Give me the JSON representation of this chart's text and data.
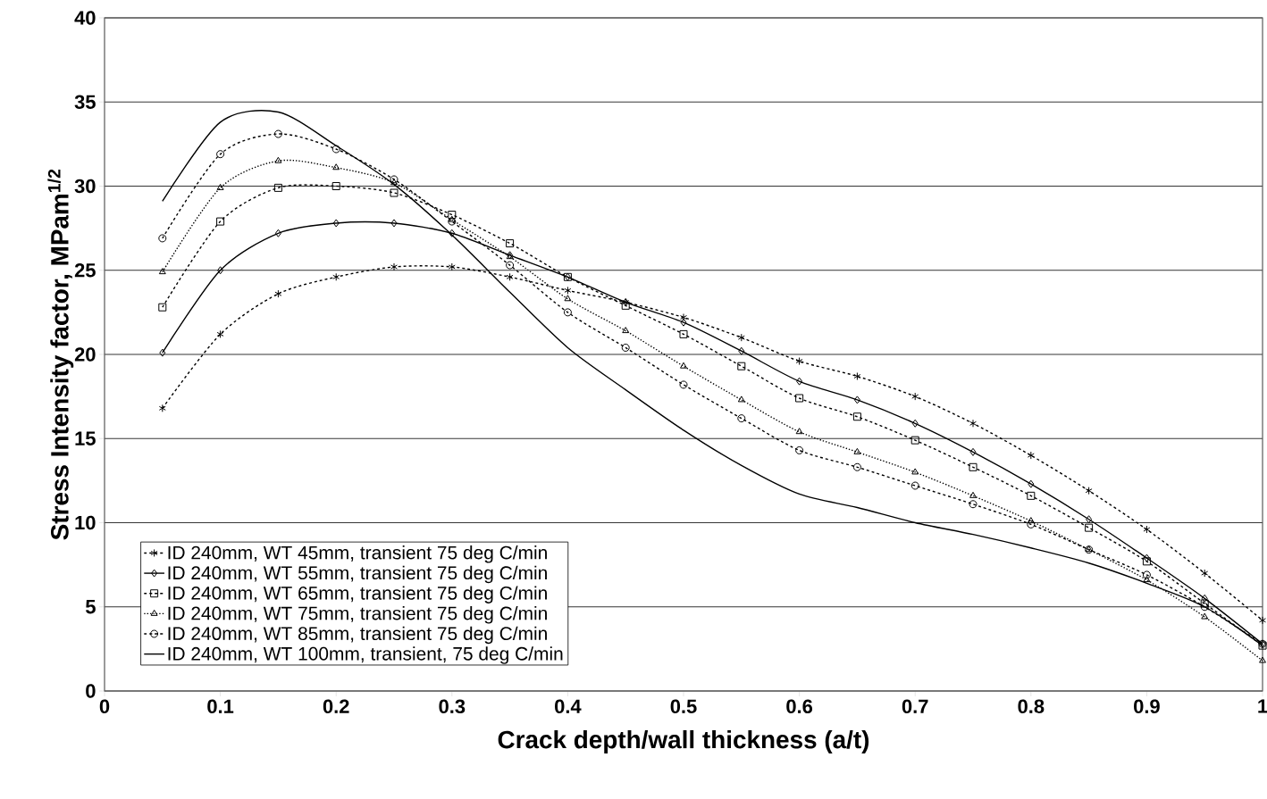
{
  "chart_data": {
    "type": "line",
    "xlabel": "Crack depth/wall thickness (a/t)",
    "ylabel": "Stress Intensity factor, MPam$^{1/2}$",
    "x": [
      0.05,
      0.1,
      0.15,
      0.2,
      0.25,
      0.3,
      0.35,
      0.4,
      0.45,
      0.5,
      0.55,
      0.6,
      0.65,
      0.7,
      0.75,
      0.8,
      0.85,
      0.9,
      0.95,
      1.0
    ],
    "series": [
      {
        "name": "ID 240mm, WT 45mm, transient 75 deg C/min",
        "color": "#000000",
        "marker": "cross",
        "line_style": "dashed",
        "values": [
          16.8,
          21.2,
          23.6,
          24.6,
          25.2,
          25.2,
          24.6,
          23.8,
          23.1,
          22.2,
          21.0,
          19.6,
          18.7,
          17.5,
          15.9,
          14.0,
          11.9,
          9.6,
          7.0,
          4.2
        ]
      },
      {
        "name": "ID 240mm, WT 55mm, transient 75 deg C/min",
        "color": "#000000",
        "marker": "diamond",
        "line_style": "solid",
        "values": [
          20.1,
          25.0,
          27.2,
          27.8,
          27.8,
          27.2,
          25.9,
          24.6,
          23.1,
          21.9,
          20.2,
          18.4,
          17.3,
          15.9,
          14.2,
          12.3,
          10.2,
          7.9,
          5.5,
          2.8
        ]
      },
      {
        "name": "ID 240mm, WT 65mm, transient 75 deg C/min",
        "color": "#000000",
        "marker": "square",
        "line_style": "dashed",
        "values": [
          22.8,
          27.9,
          29.9,
          30.0,
          29.6,
          28.3,
          26.6,
          24.6,
          22.9,
          21.2,
          19.3,
          17.4,
          16.3,
          14.9,
          13.3,
          11.6,
          9.7,
          7.7,
          5.2,
          2.7
        ]
      },
      {
        "name": "ID 240mm, WT 75mm, transient 75 deg C/min",
        "color": "#000000",
        "marker": "triangle",
        "line_style": "dotted",
        "values": [
          24.9,
          29.9,
          31.5,
          31.1,
          30.2,
          28.0,
          25.8,
          23.3,
          21.4,
          19.3,
          17.3,
          15.4,
          14.2,
          13.0,
          11.6,
          10.1,
          8.4,
          6.6,
          4.4,
          1.8
        ]
      },
      {
        "name": "ID 240mm, WT 85mm, transient 75 deg C/min",
        "color": "#000000",
        "marker": "circle",
        "line_style": "dashed",
        "values": [
          26.9,
          31.9,
          33.1,
          32.2,
          30.4,
          27.9,
          25.3,
          22.5,
          20.4,
          18.2,
          16.2,
          14.3,
          13.3,
          12.2,
          11.1,
          9.9,
          8.4,
          6.9,
          5.0,
          2.8
        ]
      },
      {
        "name": "ID 240mm, WT 100mm, transient, 75 deg C/min",
        "color": "#000000",
        "marker": "none",
        "line_style": "solid",
        "values": [
          29.1,
          33.8,
          34.4,
          32.4,
          30.1,
          27.1,
          23.7,
          20.4,
          17.9,
          15.5,
          13.4,
          11.7,
          10.9,
          10.0,
          9.3,
          8.5,
          7.6,
          6.4,
          5.0,
          2.7
        ]
      }
    ],
    "xlim": [
      0,
      1
    ],
    "ylim": [
      0,
      40
    ],
    "xticks": [
      0,
      0.1,
      0.2,
      0.3,
      0.4,
      0.5,
      0.6,
      0.7,
      0.8,
      0.9,
      1
    ],
    "yticks": [
      0,
      5,
      10,
      15,
      20,
      25,
      30,
      35,
      40
    ],
    "grid": "y",
    "legend": "bottom left"
  }
}
